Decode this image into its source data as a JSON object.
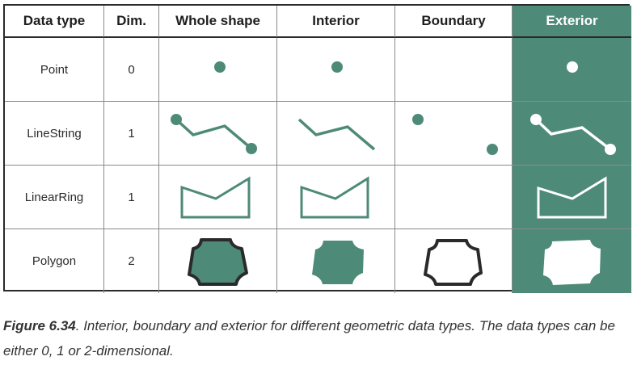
{
  "table": {
    "headers": [
      "Data type",
      "Dim.",
      "Whole shape",
      "Interior",
      "Boundary",
      "Exterior"
    ],
    "rows": [
      {
        "type": "Point",
        "dim": "0"
      },
      {
        "type": "LineString",
        "dim": "1"
      },
      {
        "type": "LinearRing",
        "dim": "1"
      },
      {
        "type": "Polygon",
        "dim": "2"
      }
    ]
  },
  "caption": {
    "figure_label": "Figure 6.34",
    "text": ". Interior, boundary and exterior for different geometric data types. The data types can be either 0, 1 or 2-dimensional."
  },
  "colors": {
    "accent": "#4e8a78",
    "outline": "#2a2a2a",
    "exterior_shape": "#ffffff"
  }
}
